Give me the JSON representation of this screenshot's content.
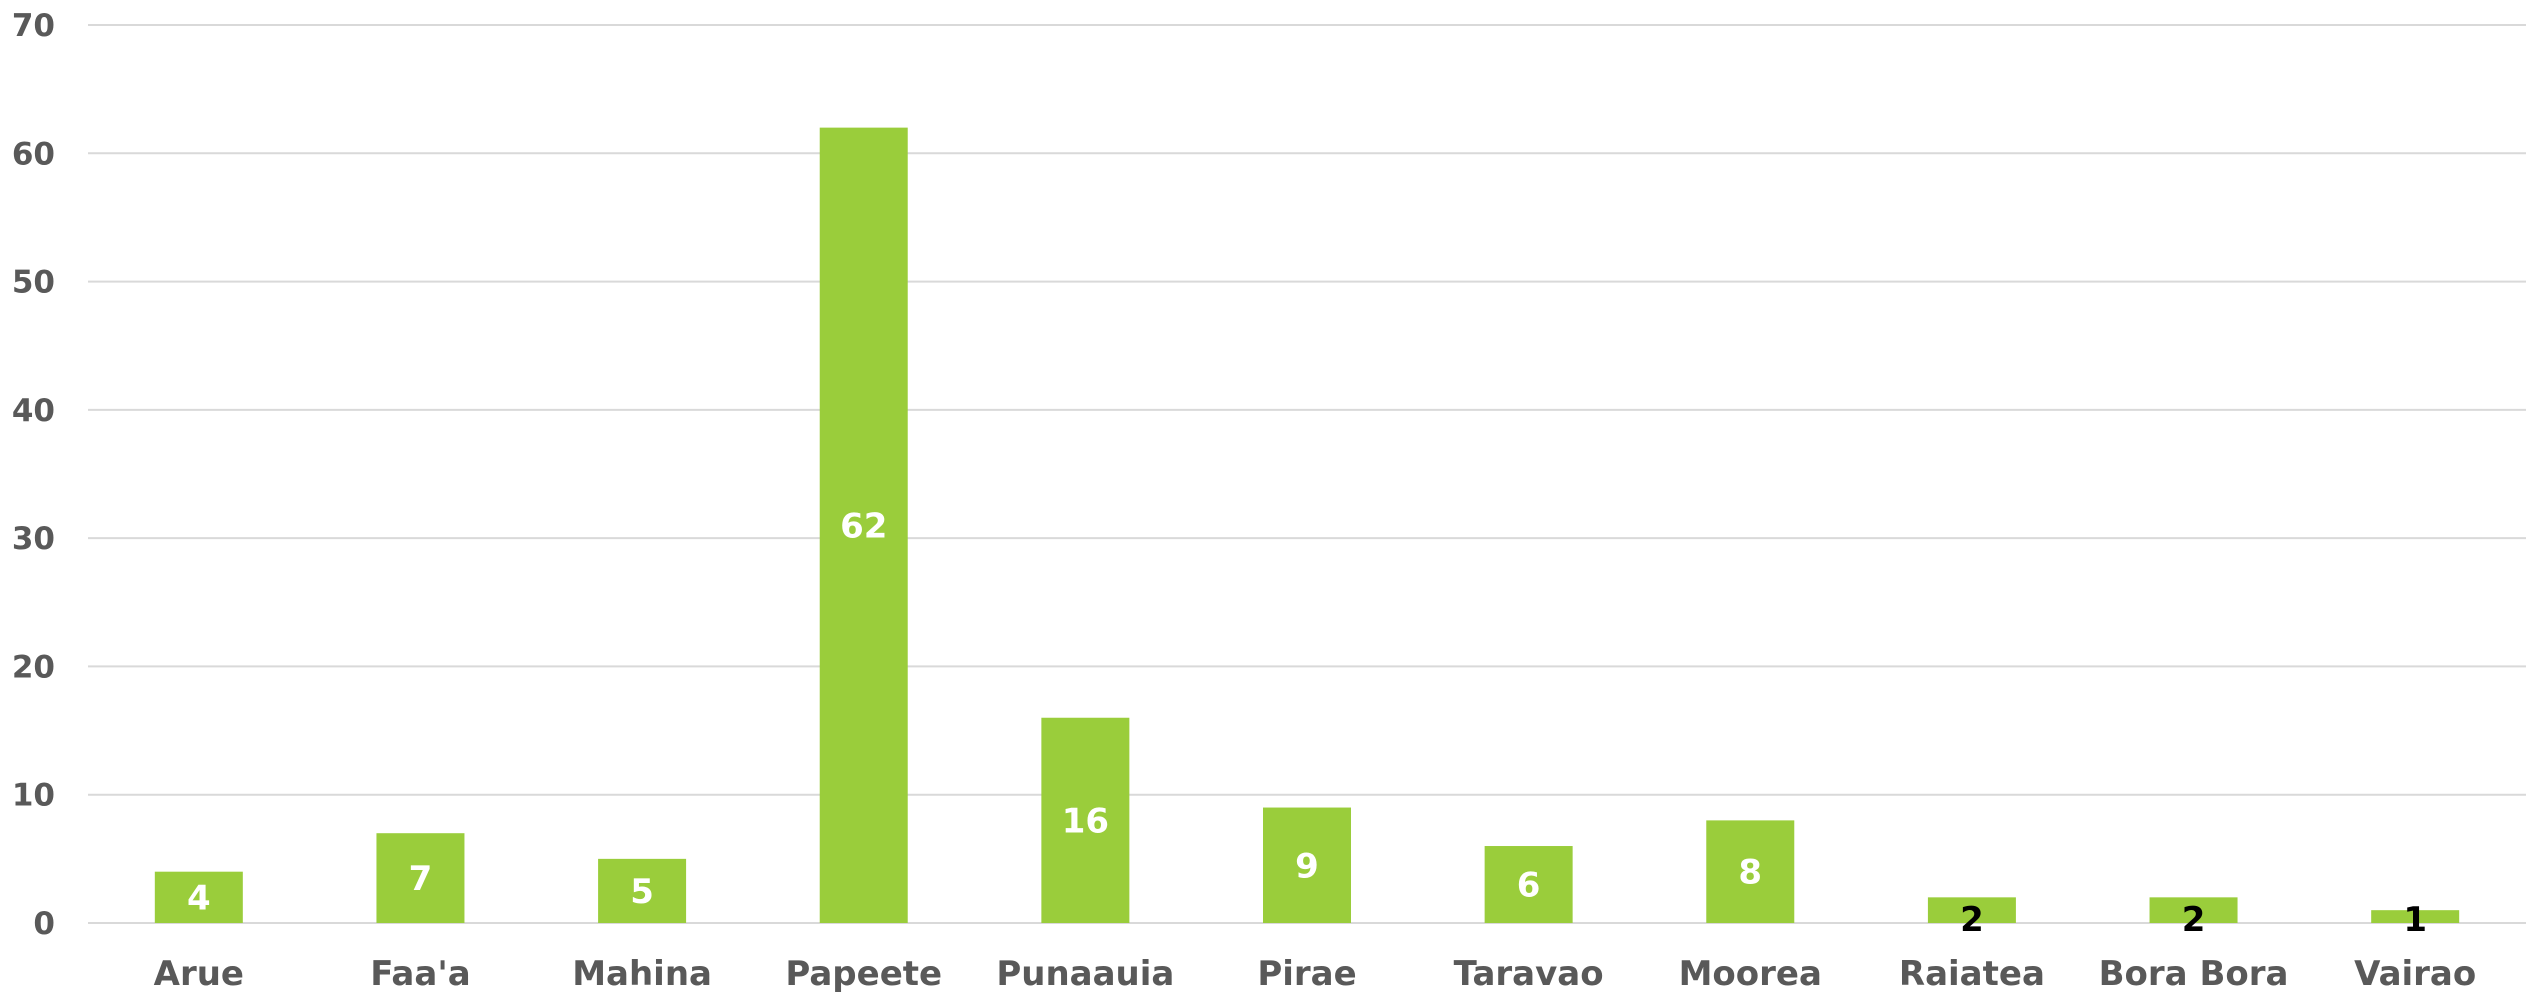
{
  "chart_data": {
    "type": "bar",
    "categories": [
      "Arue",
      "Faa'a",
      "Mahina",
      "Papeete",
      "Punaauia",
      "Pirae",
      "Taravao",
      "Moorea",
      "Raiatea",
      "Bora Bora",
      "Vairao"
    ],
    "values": [
      4,
      7,
      5,
      62,
      16,
      9,
      6,
      8,
      2,
      2,
      1
    ],
    "title": "",
    "xlabel": "",
    "ylabel": "",
    "ylim": [
      0,
      70
    ],
    "yticks": [
      0,
      10,
      20,
      30,
      40,
      50,
      60,
      70
    ],
    "grid": true,
    "legend": "none",
    "colors": {
      "bar": "#9acd3b",
      "grid": "#d9d9d9",
      "tick_text": "#595959",
      "label_inside": "#ffffff",
      "label_small": "#000000"
    }
  }
}
